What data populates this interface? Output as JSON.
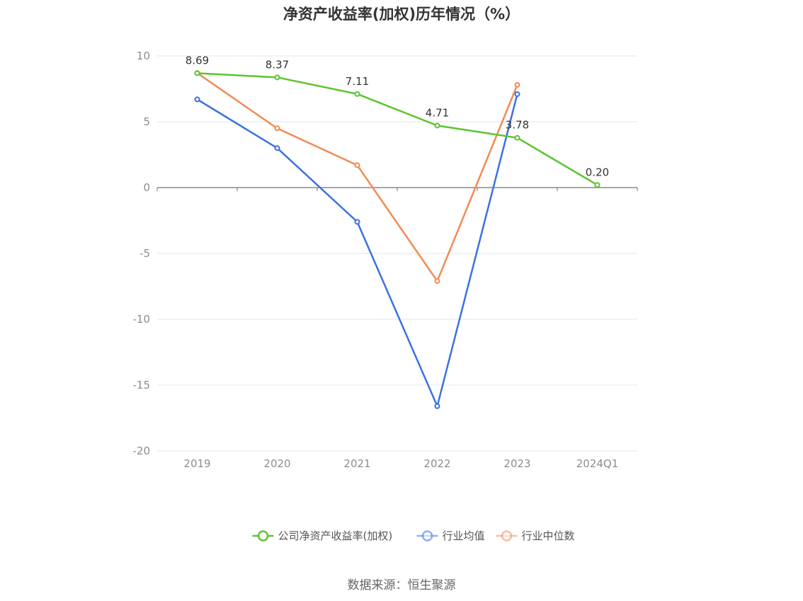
{
  "chart_data": {
    "type": "line",
    "title": "净资产收益率(加权)历年情况（%）",
    "categories": [
      "2019",
      "2020",
      "2021",
      "2022",
      "2023",
      "2024Q1"
    ],
    "ylim": [
      -20,
      10
    ],
    "yticks": [
      10,
      5,
      0,
      -5,
      -10,
      -15,
      -20
    ],
    "grid": true,
    "legend_position": "bottom",
    "series": [
      {
        "name": "公司净资产收益率(加权)",
        "color": "#5ec42e",
        "values": [
          8.69,
          8.37,
          7.11,
          4.71,
          3.78,
          0.2
        ],
        "labels": [
          "8.69",
          "8.37",
          "7.11",
          "4.71",
          "3.78",
          "0.20"
        ]
      },
      {
        "name": "行业均值",
        "color": "#3a72e0",
        "values": [
          6.7,
          3.0,
          -2.6,
          -16.6,
          7.1,
          null
        ]
      },
      {
        "name": "行业中位数",
        "color": "#f28a55",
        "values": [
          8.7,
          4.5,
          1.7,
          -7.1,
          7.8,
          null
        ]
      }
    ]
  },
  "source": "数据来源：恒生聚源"
}
